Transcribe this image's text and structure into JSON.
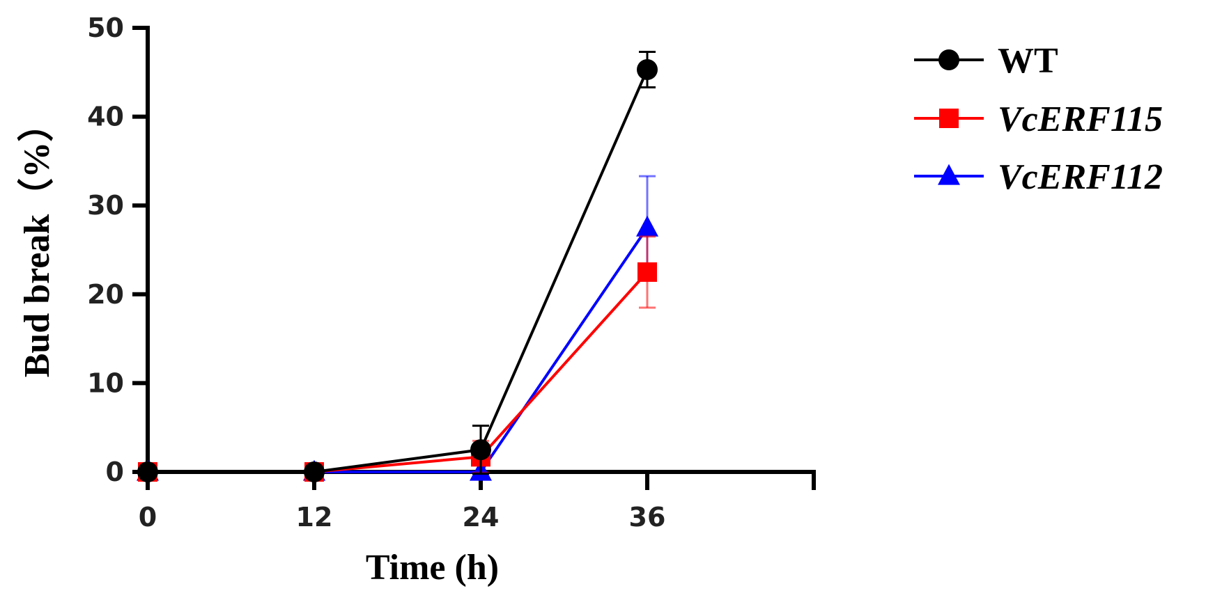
{
  "chart_data": {
    "type": "line",
    "x": [
      0,
      12,
      24,
      36
    ],
    "xlabel": "Time (h)",
    "ylabel": "Bud break（%）",
    "xticks": [
      "0",
      "12",
      "24",
      "36"
    ],
    "yticks": [
      "0",
      "10",
      "20",
      "30",
      "40",
      "50"
    ],
    "xlim": [
      0,
      48
    ],
    "ylim": [
      0,
      50
    ],
    "grid": false,
    "legend_position": "top-right",
    "series": [
      {
        "name": "WT",
        "italic": false,
        "color": "#000000",
        "marker": "circle",
        "values": [
          0,
          0,
          2.5,
          45.3
        ],
        "errors": [
          0,
          0,
          2.7,
          2.0
        ]
      },
      {
        "name": "VcERF115",
        "italic": true,
        "color": "#ff0000",
        "marker": "square",
        "values": [
          0,
          0,
          1.7,
          22.5
        ],
        "errors": [
          0,
          0,
          1.8,
          4.0
        ]
      },
      {
        "name": "VcERF112",
        "italic": true,
        "color": "#0000ff",
        "marker": "triangle",
        "values": [
          0,
          0,
          0,
          27.5
        ],
        "errors": [
          0,
          0,
          0,
          5.8
        ]
      }
    ]
  }
}
